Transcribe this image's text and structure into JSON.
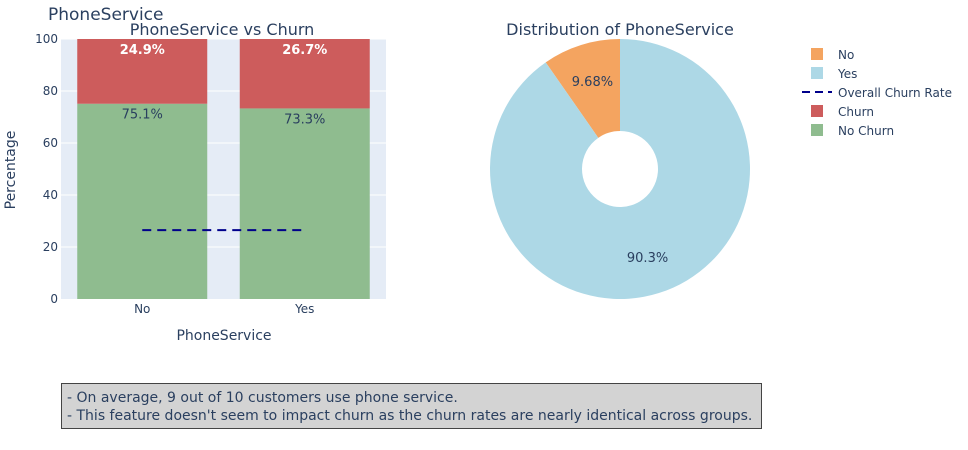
{
  "figure_title": "PhoneService",
  "chart_data": [
    {
      "type": "bar",
      "stacked": true,
      "title": "PhoneService vs Churn",
      "xlabel": "PhoneService",
      "ylabel": "Percentage",
      "categories": [
        "No",
        "Yes"
      ],
      "ylim": [
        0,
        100
      ],
      "yticks": [
        0,
        20,
        40,
        60,
        80,
        100
      ],
      "series": [
        {
          "name": "No Churn",
          "values": [
            75.1,
            73.3
          ],
          "labels": [
            "75.1%",
            "73.3%"
          ],
          "color": "#8fbc8f"
        },
        {
          "name": "Churn",
          "values": [
            24.9,
            26.7
          ],
          "labels": [
            "24.9%",
            "26.7%"
          ],
          "color": "#cd5c5c"
        }
      ],
      "reference_line": {
        "name": "Overall Churn Rate",
        "value": 26.5,
        "color": "#00008b",
        "style": "dashed"
      },
      "grid": true,
      "background": "#e5ecf6"
    },
    {
      "type": "pie",
      "hole": true,
      "title": "Distribution of PhoneService",
      "slices": [
        {
          "label": "No",
          "value": 9.68,
          "text": "9.68%",
          "color": "#f4a460"
        },
        {
          "label": "Yes",
          "value": 90.3,
          "text": "90.3%",
          "color": "#add8e6"
        }
      ]
    }
  ],
  "legend": {
    "placement": "right",
    "items": [
      {
        "label": "No",
        "color": "#f4a460",
        "kind": "square"
      },
      {
        "label": "Yes",
        "color": "#add8e6",
        "kind": "square"
      },
      {
        "label": "Overall Churn Rate",
        "color": "#00008b",
        "kind": "dash"
      },
      {
        "label": "Churn",
        "color": "#cd5c5c",
        "kind": "square"
      },
      {
        "label": "No Churn",
        "color": "#8fbc8f",
        "kind": "square"
      }
    ]
  },
  "notes": [
    "- On average, 9 out of 10 customers use phone service.",
    "- This feature doesn't seem to impact churn as the churn rates are nearly identical across groups."
  ]
}
